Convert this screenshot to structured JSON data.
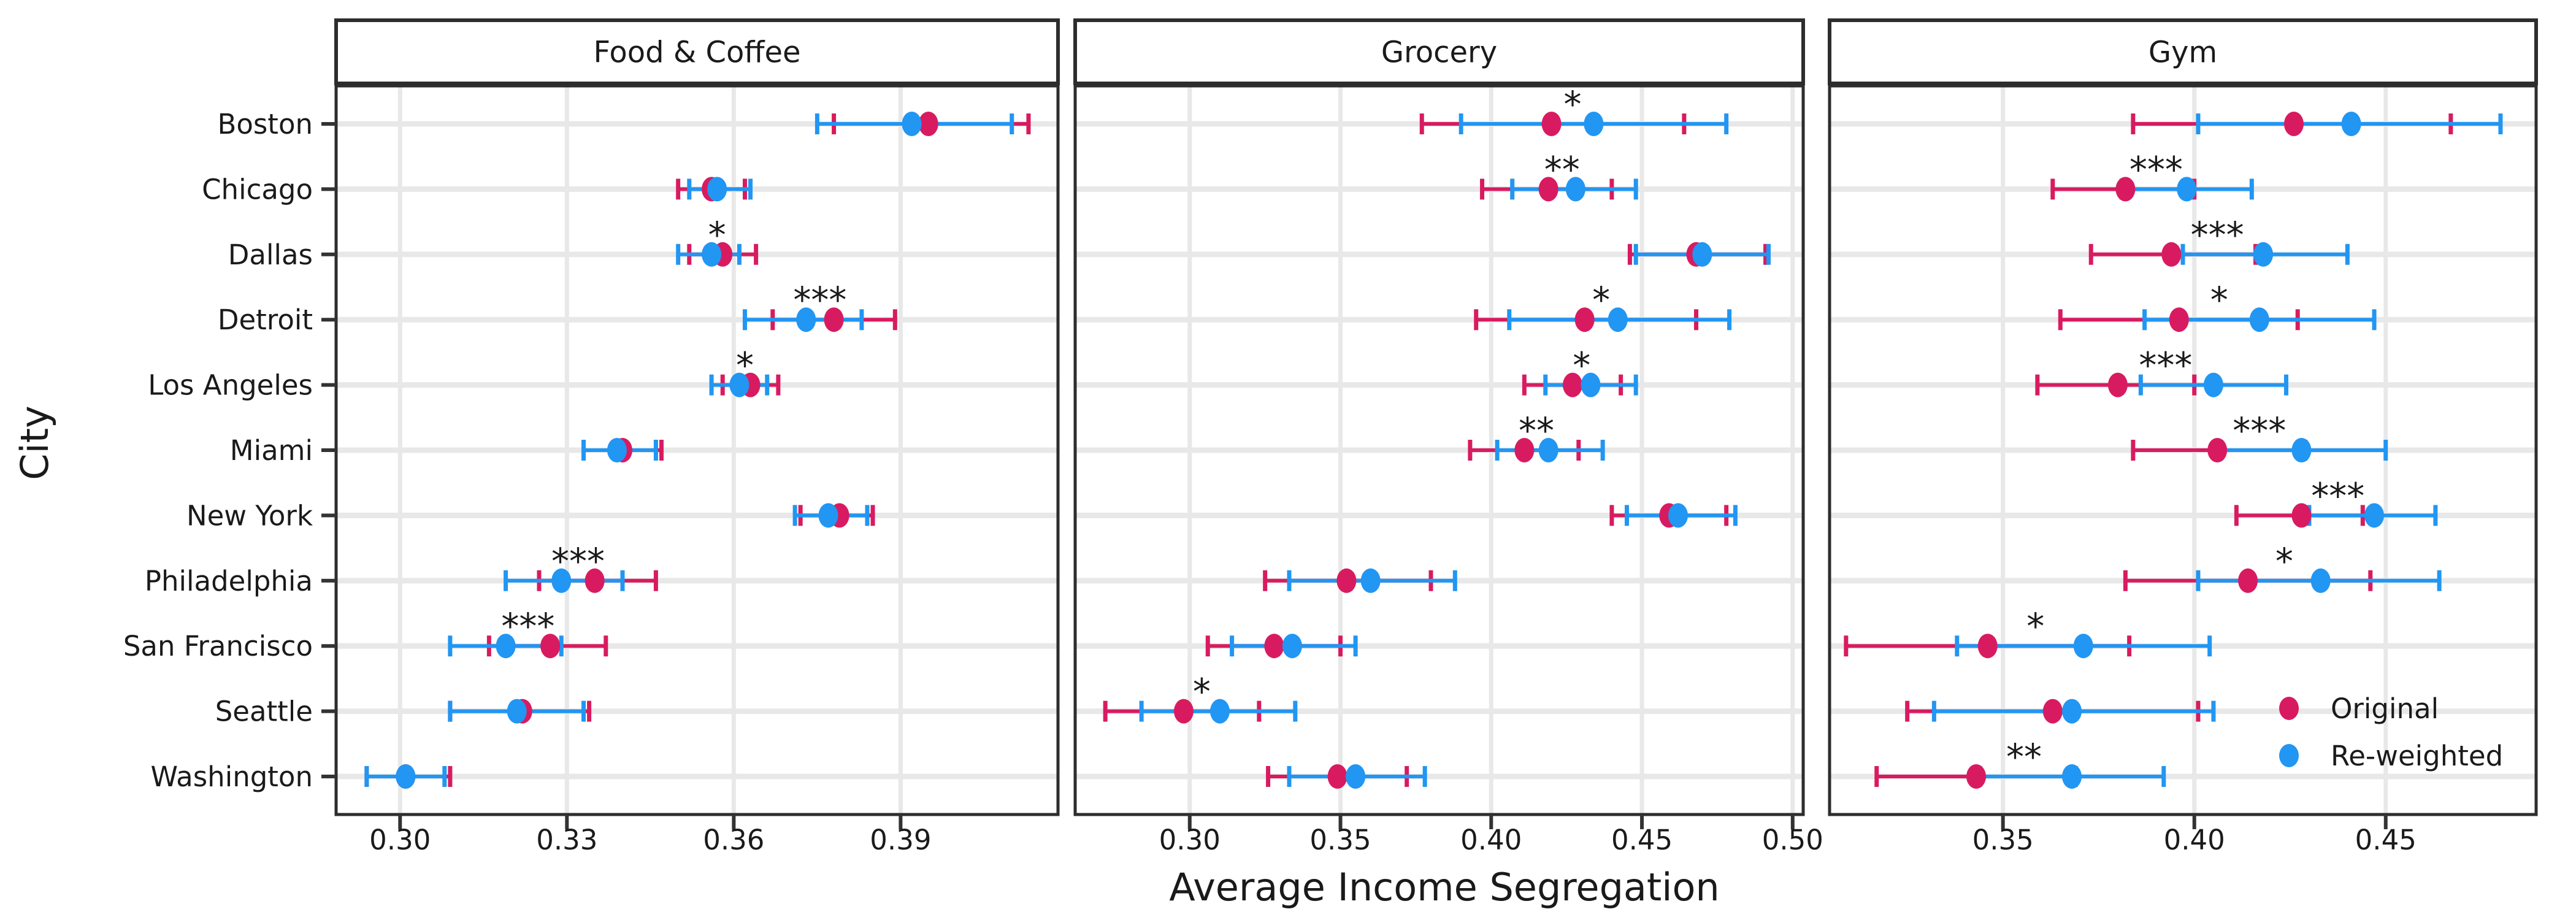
{
  "axes": {
    "x_title": "Average Income Segregation",
    "y_title": "City"
  },
  "legend": {
    "items": [
      {
        "label": "Original",
        "color": "#D81B60"
      },
      {
        "label": "Re-weighted",
        "color": "#2196F3"
      }
    ]
  },
  "colors": {
    "original": "#D81B60",
    "reweighted": "#2196F3",
    "panel_border": "#2d2d2d",
    "gridline": "#e8e8e8",
    "tick": "#333333",
    "text": "#1a1a1a"
  },
  "chart_data": {
    "type": "scatter",
    "subtype": "dot-and-ci-errorbar, 3 facets, categorical y",
    "xlabel": "Average Income Segregation",
    "ylabel": "City",
    "grid": "on",
    "legend_position": "inside bottom-right of Gym facet",
    "series": [
      {
        "name": "Original",
        "color": "#D81B60"
      },
      {
        "name": "Re-weighted",
        "color": "#2196F3"
      }
    ],
    "cities": [
      "Boston",
      "Chicago",
      "Dallas",
      "Detroit",
      "Los Angeles",
      "Miami",
      "New York",
      "Philadelphia",
      "San Francisco",
      "Seattle",
      "Washington"
    ],
    "facets": [
      {
        "label": "Food & Coffee",
        "ticks": [
          0.3,
          0.33,
          0.36,
          0.39
        ],
        "xlim": [
          0.2885,
          0.4183
        ],
        "rows": [
          {
            "city": "Boston",
            "original": {
              "est": 0.395,
              "lo": 0.378,
              "hi": 0.413
            },
            "reweighted": {
              "est": 0.392,
              "lo": 0.375,
              "hi": 0.41
            },
            "sig": ""
          },
          {
            "city": "Chicago",
            "original": {
              "est": 0.356,
              "lo": 0.35,
              "hi": 0.362
            },
            "reweighted": {
              "est": 0.357,
              "lo": 0.352,
              "hi": 0.363
            },
            "sig": ""
          },
          {
            "city": "Dallas",
            "original": {
              "est": 0.358,
              "lo": 0.352,
              "hi": 0.364
            },
            "reweighted": {
              "est": 0.356,
              "lo": 0.35,
              "hi": 0.361
            },
            "sig": "*"
          },
          {
            "city": "Detroit",
            "original": {
              "est": 0.378,
              "lo": 0.367,
              "hi": 0.389
            },
            "reweighted": {
              "est": 0.373,
              "lo": 0.362,
              "hi": 0.383
            },
            "sig": "***"
          },
          {
            "city": "Los Angeles",
            "original": {
              "est": 0.363,
              "lo": 0.358,
              "hi": 0.368
            },
            "reweighted": {
              "est": 0.361,
              "lo": 0.356,
              "hi": 0.366
            },
            "sig": "*"
          },
          {
            "city": "Miami",
            "original": {
              "est": 0.34,
              "lo": 0.333,
              "hi": 0.347
            },
            "reweighted": {
              "est": 0.339,
              "lo": 0.333,
              "hi": 0.346
            },
            "sig": ""
          },
          {
            "city": "New York",
            "original": {
              "est": 0.379,
              "lo": 0.372,
              "hi": 0.385
            },
            "reweighted": {
              "est": 0.377,
              "lo": 0.371,
              "hi": 0.384
            },
            "sig": ""
          },
          {
            "city": "Philadelphia",
            "original": {
              "est": 0.335,
              "lo": 0.325,
              "hi": 0.346
            },
            "reweighted": {
              "est": 0.329,
              "lo": 0.319,
              "hi": 0.34
            },
            "sig": "***"
          },
          {
            "city": "San Francisco",
            "original": {
              "est": 0.327,
              "lo": 0.316,
              "hi": 0.337
            },
            "reweighted": {
              "est": 0.319,
              "lo": 0.309,
              "hi": 0.329
            },
            "sig": "***"
          },
          {
            "city": "Seattle",
            "original": {
              "est": 0.322,
              "lo": 0.309,
              "hi": 0.334
            },
            "reweighted": {
              "est": 0.321,
              "lo": 0.309,
              "hi": 0.333
            },
            "sig": ""
          },
          {
            "city": "Washington",
            "original": {
              "est": 0.301,
              "lo": 0.294,
              "hi": 0.309
            },
            "reweighted": {
              "est": 0.301,
              "lo": 0.294,
              "hi": 0.308
            },
            "sig": ""
          }
        ]
      },
      {
        "label": "Grocery",
        "ticks": [
          0.3,
          0.35,
          0.4,
          0.45,
          0.5
        ],
        "xlim": [
          0.262,
          0.5035
        ],
        "rows": [
          {
            "city": "Boston",
            "original": {
              "est": 0.42,
              "lo": 0.377,
              "hi": 0.464
            },
            "reweighted": {
              "est": 0.434,
              "lo": 0.39,
              "hi": 0.478
            },
            "sig": "*"
          },
          {
            "city": "Chicago",
            "original": {
              "est": 0.419,
              "lo": 0.397,
              "hi": 0.44
            },
            "reweighted": {
              "est": 0.428,
              "lo": 0.407,
              "hi": 0.448
            },
            "sig": "**"
          },
          {
            "city": "Dallas",
            "original": {
              "est": 0.468,
              "lo": 0.446,
              "hi": 0.491
            },
            "reweighted": {
              "est": 0.47,
              "lo": 0.448,
              "hi": 0.492
            },
            "sig": ""
          },
          {
            "city": "Detroit",
            "original": {
              "est": 0.431,
              "lo": 0.395,
              "hi": 0.468
            },
            "reweighted": {
              "est": 0.442,
              "lo": 0.406,
              "hi": 0.479
            },
            "sig": "*"
          },
          {
            "city": "Los Angeles",
            "original": {
              "est": 0.427,
              "lo": 0.411,
              "hi": 0.443
            },
            "reweighted": {
              "est": 0.433,
              "lo": 0.418,
              "hi": 0.448
            },
            "sig": "*"
          },
          {
            "city": "Miami",
            "original": {
              "est": 0.411,
              "lo": 0.393,
              "hi": 0.429
            },
            "reweighted": {
              "est": 0.419,
              "lo": 0.402,
              "hi": 0.437
            },
            "sig": "**"
          },
          {
            "city": "New York",
            "original": {
              "est": 0.459,
              "lo": 0.44,
              "hi": 0.478
            },
            "reweighted": {
              "est": 0.462,
              "lo": 0.445,
              "hi": 0.481
            },
            "sig": ""
          },
          {
            "city": "Philadelphia",
            "original": {
              "est": 0.352,
              "lo": 0.325,
              "hi": 0.38
            },
            "reweighted": {
              "est": 0.36,
              "lo": 0.333,
              "hi": 0.388
            },
            "sig": ""
          },
          {
            "city": "San Francisco",
            "original": {
              "est": 0.328,
              "lo": 0.306,
              "hi": 0.35
            },
            "reweighted": {
              "est": 0.334,
              "lo": 0.314,
              "hi": 0.355
            },
            "sig": ""
          },
          {
            "city": "Seattle",
            "original": {
              "est": 0.298,
              "lo": 0.272,
              "hi": 0.323
            },
            "reweighted": {
              "est": 0.31,
              "lo": 0.284,
              "hi": 0.335
            },
            "sig": "*"
          },
          {
            "city": "Washington",
            "original": {
              "est": 0.349,
              "lo": 0.326,
              "hi": 0.372
            },
            "reweighted": {
              "est": 0.355,
              "lo": 0.333,
              "hi": 0.378
            },
            "sig": ""
          }
        ]
      },
      {
        "label": "Gym",
        "ticks": [
          0.35,
          0.4,
          0.45
        ],
        "xlim": [
          0.3047,
          0.4893
        ],
        "rows": [
          {
            "city": "Boston",
            "original": {
              "est": 0.426,
              "lo": 0.384,
              "hi": 0.467
            },
            "reweighted": {
              "est": 0.441,
              "lo": 0.401,
              "hi": 0.48
            },
            "sig": ""
          },
          {
            "city": "Chicago",
            "original": {
              "est": 0.382,
              "lo": 0.363,
              "hi": 0.4
            },
            "reweighted": {
              "est": 0.398,
              "lo": 0.381,
              "hi": 0.415
            },
            "sig": "***"
          },
          {
            "city": "Dallas",
            "original": {
              "est": 0.394,
              "lo": 0.373,
              "hi": 0.416
            },
            "reweighted": {
              "est": 0.418,
              "lo": 0.397,
              "hi": 0.44
            },
            "sig": "***"
          },
          {
            "city": "Detroit",
            "original": {
              "est": 0.396,
              "lo": 0.365,
              "hi": 0.427
            },
            "reweighted": {
              "est": 0.417,
              "lo": 0.387,
              "hi": 0.447
            },
            "sig": "*"
          },
          {
            "city": "Los Angeles",
            "original": {
              "est": 0.38,
              "lo": 0.359,
              "hi": 0.4
            },
            "reweighted": {
              "est": 0.405,
              "lo": 0.386,
              "hi": 0.424
            },
            "sig": "***"
          },
          {
            "city": "Miami",
            "original": {
              "est": 0.406,
              "lo": 0.384,
              "hi": 0.429
            },
            "reweighted": {
              "est": 0.428,
              "lo": 0.407,
              "hi": 0.45
            },
            "sig": "***"
          },
          {
            "city": "New York",
            "original": {
              "est": 0.428,
              "lo": 0.411,
              "hi": 0.444
            },
            "reweighted": {
              "est": 0.447,
              "lo": 0.43,
              "hi": 0.463
            },
            "sig": "***"
          },
          {
            "city": "Philadelphia",
            "original": {
              "est": 0.414,
              "lo": 0.382,
              "hi": 0.446
            },
            "reweighted": {
              "est": 0.433,
              "lo": 0.401,
              "hi": 0.464
            },
            "sig": "*"
          },
          {
            "city": "San Francisco",
            "original": {
              "est": 0.346,
              "lo": 0.309,
              "hi": 0.383
            },
            "reweighted": {
              "est": 0.371,
              "lo": 0.338,
              "hi": 0.404
            },
            "sig": "*"
          },
          {
            "city": "Seattle",
            "original": {
              "est": 0.363,
              "lo": 0.325,
              "hi": 0.401
            },
            "reweighted": {
              "est": 0.368,
              "lo": 0.332,
              "hi": 0.405
            },
            "sig": ""
          },
          {
            "city": "Washington",
            "original": {
              "est": 0.343,
              "lo": 0.317,
              "hi": 0.369
            },
            "reweighted": {
              "est": 0.368,
              "lo": 0.344,
              "hi": 0.392
            },
            "sig": "**"
          }
        ]
      }
    ]
  }
}
